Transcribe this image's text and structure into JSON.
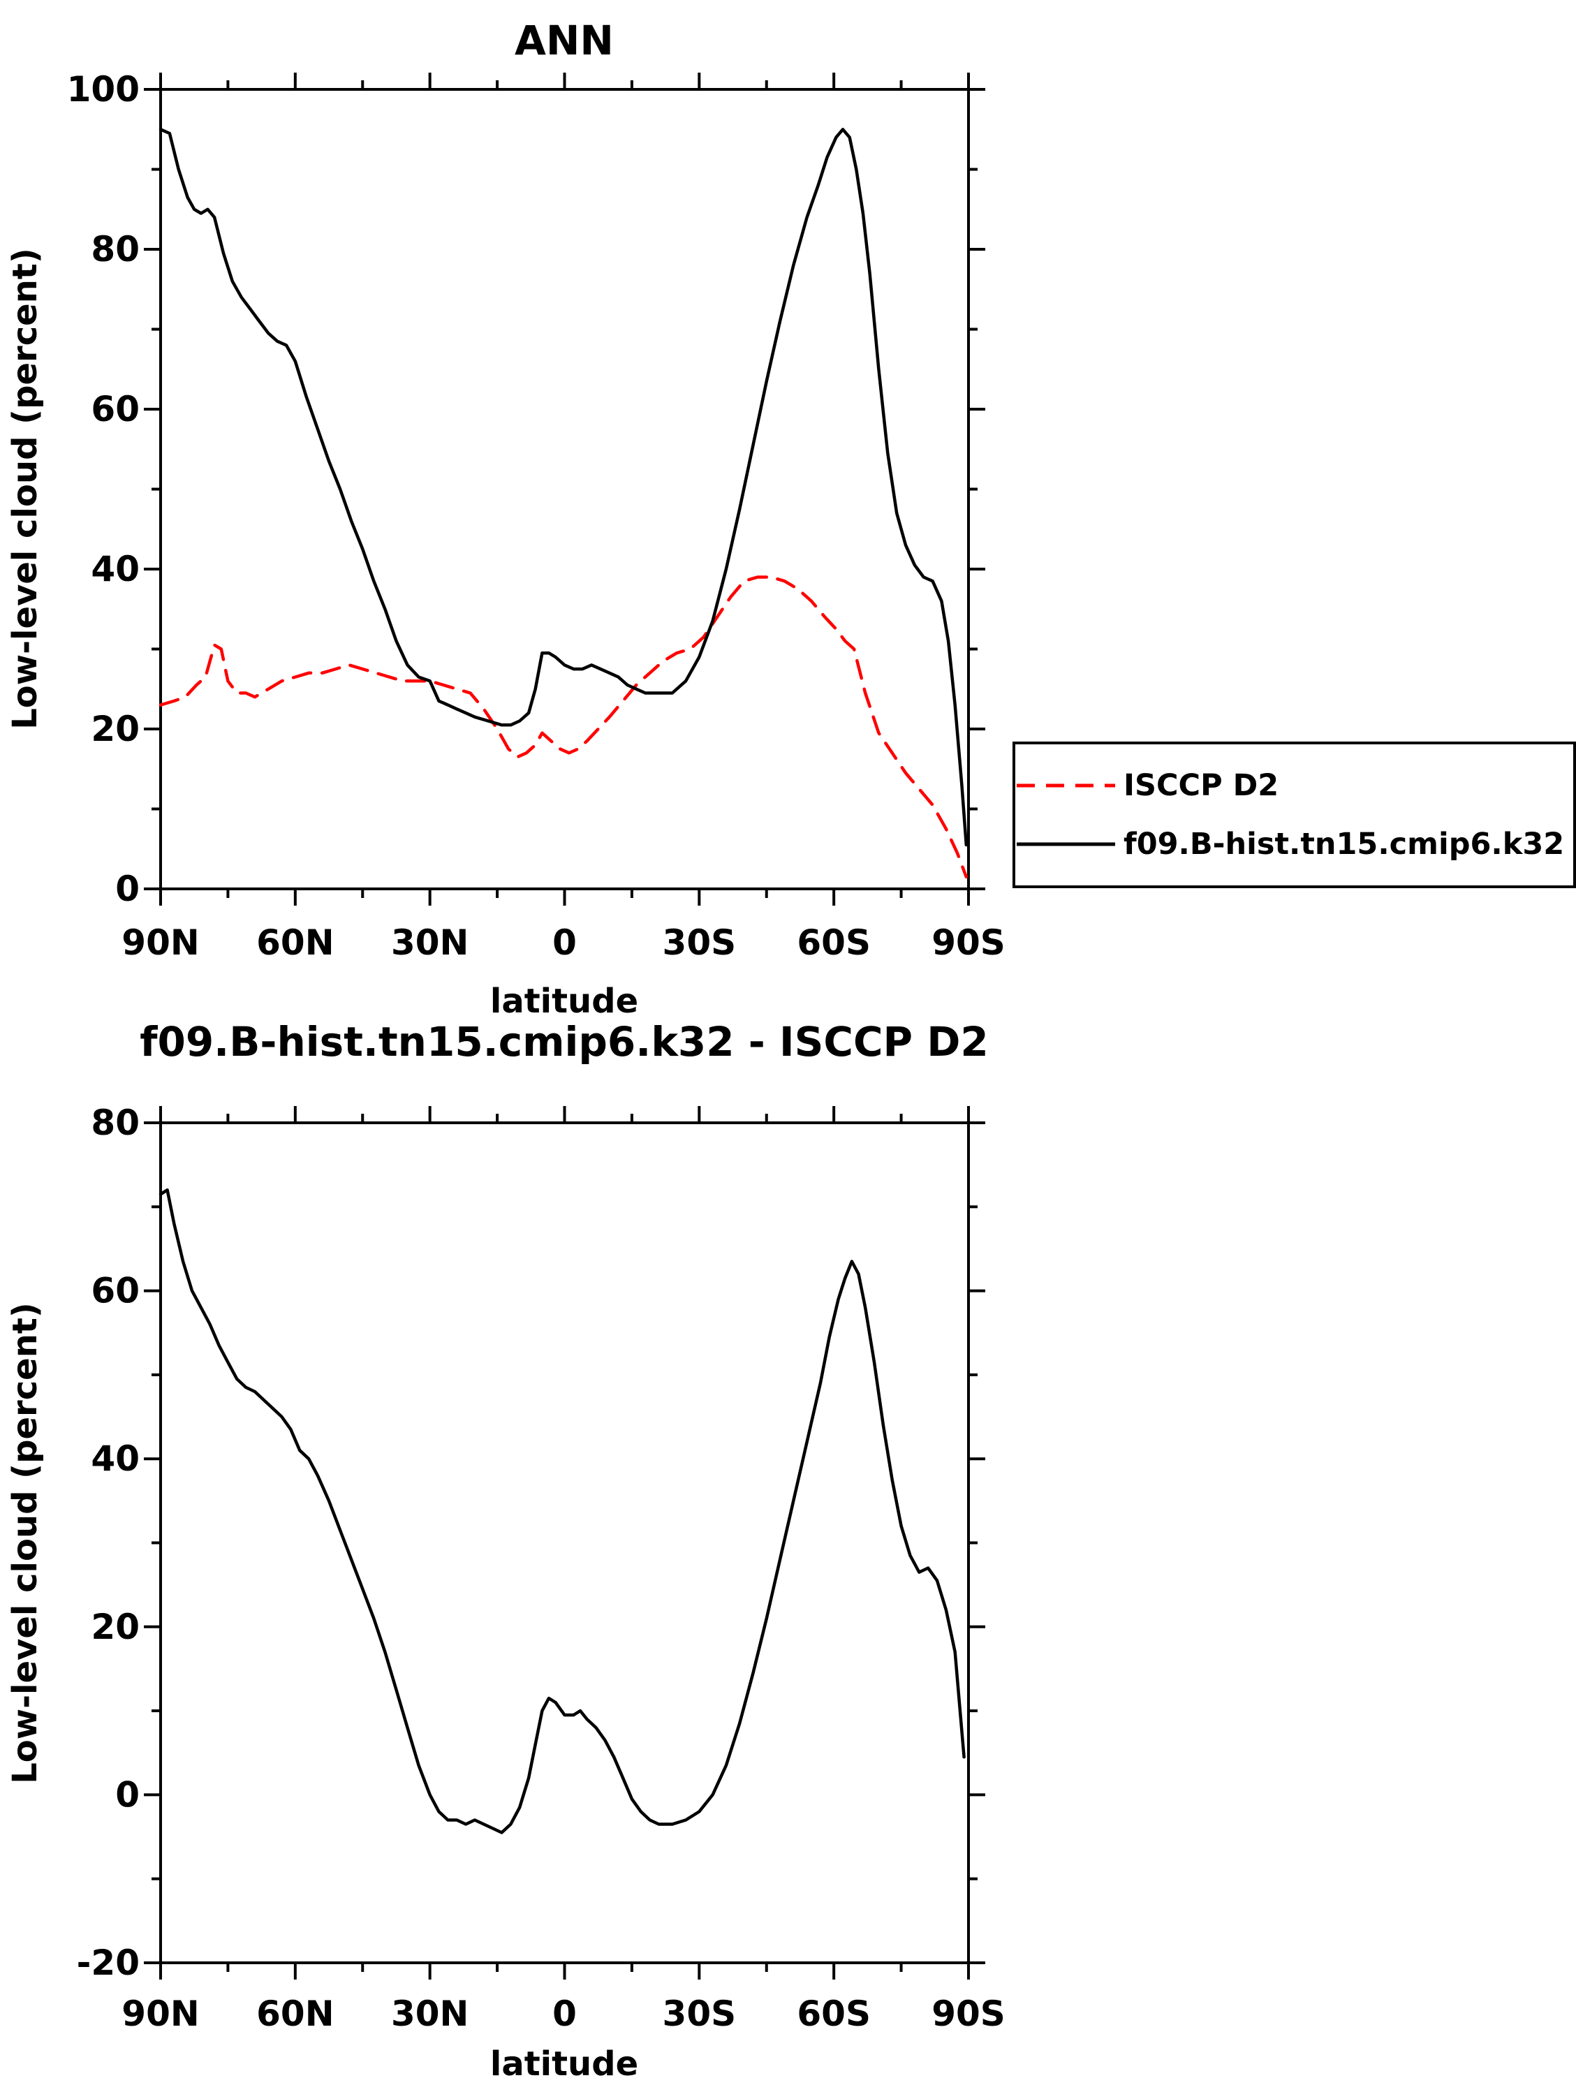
{
  "legend": {
    "entries": [
      {
        "label": "ISCCP D2",
        "color": "#ff0000",
        "style": "dashed"
      },
      {
        "label": "f09.B-hist.tn15.cmip6.k32",
        "color": "#000000",
        "style": "solid"
      }
    ]
  },
  "chart_data": [
    {
      "type": "line",
      "name": "top-chart-ann",
      "title": "ANN",
      "xlabel": "latitude",
      "ylabel": "Low-level cloud (percent)",
      "xlim": [
        90,
        -90
      ],
      "ylim": [
        0,
        100
      ],
      "x_major_ticks": [
        90,
        60,
        30,
        0,
        -30,
        -60,
        -90
      ],
      "x_tick_labels": [
        "90N",
        "60N",
        "30N",
        "0",
        "30S",
        "60S",
        "90S"
      ],
      "x_minor_step": 15,
      "y_major_ticks": [
        0,
        20,
        40,
        60,
        80,
        100
      ],
      "y_tick_labels": [
        "0",
        "20",
        "40",
        "60",
        "80",
        "100"
      ],
      "y_minor_step": 10,
      "grid": false,
      "legend_position": "outside-right",
      "series": [
        {
          "name": "ISCCP D2",
          "color": "#ff0000",
          "style": "dashed",
          "x": [
            90,
            87,
            84.5,
            82,
            80,
            78,
            76.5,
            75,
            73,
            71,
            69,
            66,
            63,
            60,
            57,
            54,
            51,
            48,
            45,
            42,
            39,
            36,
            33,
            30,
            27,
            24,
            21,
            18,
            15,
            12.5,
            10.5,
            8.5,
            6.5,
            5,
            3,
            1,
            -1,
            -3,
            -5,
            -7.5,
            -10,
            -13,
            -16,
            -19,
            -22,
            -25,
            -28,
            -31,
            -34,
            -37,
            -40,
            -43,
            -46,
            -49,
            -52,
            -55,
            -58,
            -60.5,
            -62.5,
            -64.5,
            -67,
            -70,
            -73,
            -76,
            -79,
            -82,
            -85,
            -87.5,
            -89.5
          ],
          "y": [
            23,
            23.5,
            24,
            25.5,
            26.5,
            30.5,
            30,
            26,
            24.5,
            24.5,
            24,
            25,
            26,
            26.5,
            27,
            27,
            27.5,
            28,
            27.5,
            27,
            26.5,
            26,
            26,
            26,
            25.5,
            25,
            24.5,
            22.5,
            20,
            17.5,
            16.5,
            17,
            18,
            19.5,
            18.5,
            17.5,
            17,
            17.5,
            18.5,
            20,
            21.5,
            23.5,
            25.5,
            27,
            28.5,
            29.5,
            30,
            31.5,
            34,
            36.5,
            38.5,
            39,
            39,
            38.5,
            37.5,
            36,
            34,
            32.5,
            31,
            30,
            24.5,
            19.5,
            17,
            14.5,
            12.5,
            10.5,
            7.5,
            4.5,
            1.5
          ]
        },
        {
          "name": "f09.B-hist.tn15.cmip6.k32",
          "color": "#000000",
          "style": "solid",
          "x": [
            90,
            88,
            86,
            84,
            82.5,
            81,
            79.5,
            78,
            76,
            74,
            72,
            70,
            68,
            66,
            64,
            62,
            60,
            57.5,
            55,
            52.5,
            50,
            47.5,
            45,
            42.5,
            40,
            37.5,
            35,
            32.5,
            30,
            28,
            26,
            24,
            22,
            20,
            17,
            14,
            12,
            10,
            8,
            6.5,
            5,
            3.5,
            2,
            0,
            -2,
            -4,
            -6,
            -8,
            -10,
            -12,
            -14,
            -16,
            -18,
            -21,
            -24,
            -27,
            -30,
            -33,
            -36,
            -39,
            -42,
            -45,
            -48,
            -51,
            -54,
            -56.5,
            -58.5,
            -60.5,
            -62,
            -63.5,
            -65,
            -66.5,
            -68,
            -70,
            -72,
            -74,
            -76,
            -78,
            -80,
            -82,
            -84,
            -85.5,
            -87,
            -88.5,
            -89.5
          ],
          "y": [
            95,
            94.5,
            90,
            86.5,
            85,
            84.5,
            85,
            84,
            79.5,
            76,
            74,
            72.5,
            71,
            69.5,
            68.5,
            68,
            66,
            61.5,
            57.5,
            53.5,
            50,
            46,
            42.5,
            38.5,
            35,
            31,
            28,
            26.5,
            26,
            23.5,
            23,
            22.5,
            22,
            21.5,
            21,
            20.5,
            20.5,
            21,
            22,
            25,
            29.5,
            29.5,
            29,
            28,
            27.5,
            27.5,
            28,
            27.5,
            27,
            26.5,
            25.5,
            25,
            24.5,
            24.5,
            24.5,
            26,
            29,
            33.5,
            40,
            47.5,
            55.5,
            63.5,
            71,
            78,
            84,
            88,
            91.5,
            94,
            95,
            94,
            90,
            84.5,
            77,
            65,
            54.5,
            47,
            43,
            40.5,
            39,
            38.5,
            36,
            31,
            23,
            13,
            5.5
          ]
        }
      ]
    },
    {
      "type": "line",
      "name": "bottom-chart-difference",
      "title": "f09.B-hist.tn15.cmip6.k32 - ISCCP D2",
      "xlabel": "latitude",
      "ylabel": "Low-level cloud (percent)",
      "xlim": [
        90,
        -90
      ],
      "ylim": [
        -20,
        80
      ],
      "x_major_ticks": [
        90,
        60,
        30,
        0,
        -30,
        -60,
        -90
      ],
      "x_tick_labels": [
        "90N",
        "60N",
        "30N",
        "0",
        "30S",
        "60S",
        "90S"
      ],
      "x_minor_step": 15,
      "y_major_ticks": [
        -20,
        0,
        20,
        40,
        60,
        80
      ],
      "y_tick_labels": [
        "-20",
        "0",
        "20",
        "40",
        "60",
        "80"
      ],
      "y_minor_step": 10,
      "grid": false,
      "series": [
        {
          "name": "f09.B-hist.tn15.cmip6.k32 - ISCCP D2",
          "color": "#000000",
          "style": "solid",
          "x": [
            90,
            88.5,
            87,
            85,
            83,
            81,
            79,
            77,
            75,
            73,
            71,
            69,
            67,
            65,
            63,
            61,
            59,
            57,
            55,
            52.5,
            50,
            47.5,
            45,
            42.5,
            40,
            37.5,
            35,
            32.5,
            30,
            28,
            26,
            24,
            22,
            20,
            18,
            16,
            14,
            12,
            10,
            8,
            6.5,
            5,
            3.5,
            2,
            0,
            -2,
            -3.5,
            -5,
            -7,
            -9,
            -11,
            -13,
            -15,
            -17,
            -19,
            -21,
            -24,
            -27,
            -30,
            -33,
            -36,
            -39,
            -42,
            -45,
            -48,
            -51,
            -54,
            -57,
            -59,
            -61,
            -62.5,
            -64,
            -65.5,
            -67,
            -69,
            -71,
            -73,
            -75,
            -77,
            -79,
            -81,
            -83,
            -85,
            -87,
            -89
          ],
          "y": [
            71.5,
            72,
            68,
            63.5,
            60,
            58,
            56,
            53.5,
            51.5,
            49.5,
            48.5,
            48,
            47,
            46,
            45,
            43.5,
            41,
            40,
            38,
            35,
            31.5,
            28,
            24.5,
            21,
            17,
            12.5,
            8,
            3.5,
            0,
            -2,
            -3,
            -3,
            -3.5,
            -3,
            -3.5,
            -4,
            -4.5,
            -3.5,
            -1.5,
            2,
            6,
            10,
            11.5,
            11,
            9.5,
            9.5,
            10,
            9,
            8,
            6.5,
            4.5,
            2,
            -0.5,
            -2,
            -3,
            -3.5,
            -3.5,
            -3,
            -2,
            0,
            3.5,
            8.5,
            14.5,
            21,
            28,
            35,
            42,
            49,
            54.5,
            59,
            61.5,
            63.5,
            62,
            58,
            51.5,
            44,
            37.5,
            32,
            28.5,
            26.5,
            27,
            25.5,
            22,
            17,
            4.5
          ]
        }
      ]
    }
  ]
}
